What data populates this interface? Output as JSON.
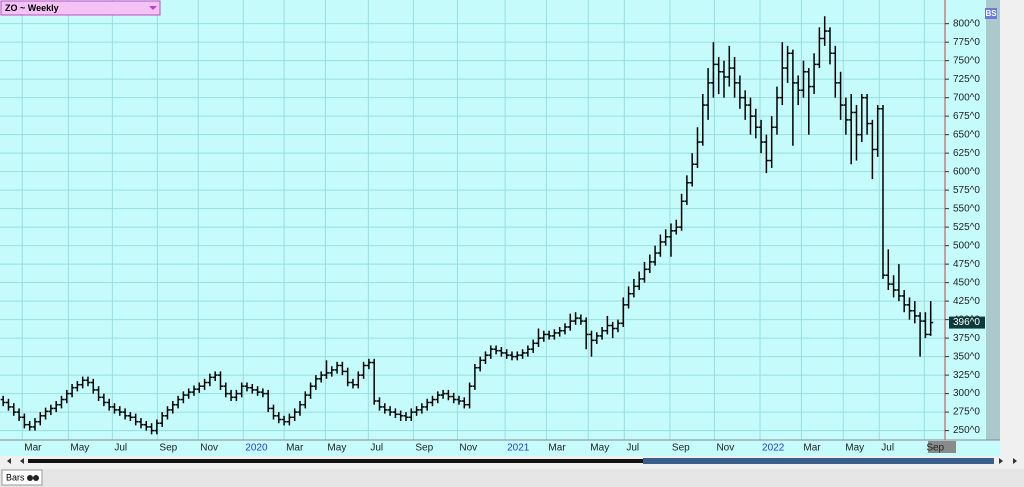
{
  "header": {
    "title": "ZO ~ Weekly",
    "badge": "BS"
  },
  "footer": {
    "tab": "Bars"
  },
  "chart_data": {
    "type": "ohlc",
    "xlim": [
      -0.6,
      177.7
    ],
    "ylim": [
      240,
      832
    ],
    "xticks": [
      {
        "value": 3.6,
        "label": "Mar"
      },
      {
        "value": 12.3,
        "label": "May"
      },
      {
        "value": 20.6,
        "label": "Jul"
      },
      {
        "value": 29.1,
        "label": "Sep"
      },
      {
        "value": 36.8,
        "label": "Nov"
      },
      {
        "value": 45.3,
        "label": "2020"
      },
      {
        "value": 53,
        "label": "Mar"
      },
      {
        "value": 60.8,
        "label": "May"
      },
      {
        "value": 68.9,
        "label": "Jul"
      },
      {
        "value": 77.4,
        "label": "Sep"
      },
      {
        "value": 85.7,
        "label": "Nov"
      },
      {
        "value": 94.7,
        "label": "2021"
      },
      {
        "value": 102.5,
        "label": "Mar"
      },
      {
        "value": 110.4,
        "label": "May"
      },
      {
        "value": 117.2,
        "label": "Jul"
      },
      {
        "value": 125.8,
        "label": "Sep"
      },
      {
        "value": 134.2,
        "label": "Nov"
      },
      {
        "value": 142.8,
        "label": "2022"
      },
      {
        "value": 150.6,
        "label": "Mar"
      },
      {
        "value": 158.5,
        "label": "May"
      },
      {
        "value": 165.3,
        "label": "Jul"
      },
      {
        "value": 173.8,
        "label": "Sep"
      }
    ],
    "yticks": [
      {
        "value": 250,
        "label": "250^0"
      },
      {
        "value": 275,
        "label": "275^0"
      },
      {
        "value": 300,
        "label": "300^0"
      },
      {
        "value": 325,
        "label": "325^0"
      },
      {
        "value": 350,
        "label": "350^0"
      },
      {
        "value": 375,
        "label": "375^0"
      },
      {
        "value": 400,
        "label": "400^0"
      },
      {
        "value": 425,
        "label": "425^0"
      },
      {
        "value": 450,
        "label": "450^0"
      },
      {
        "value": 475,
        "label": "475^0"
      },
      {
        "value": 500,
        "label": "500^0"
      },
      {
        "value": 525,
        "label": "525^0"
      },
      {
        "value": 550,
        "label": "550^0"
      },
      {
        "value": 575,
        "label": "575^0"
      },
      {
        "value": 600,
        "label": "600^0"
      },
      {
        "value": 625,
        "label": "625^0"
      },
      {
        "value": 650,
        "label": "650^0"
      },
      {
        "value": 675,
        "label": "675^0"
      },
      {
        "value": 700,
        "label": "700^0"
      },
      {
        "value": 725,
        "label": "725^0"
      },
      {
        "value": 750,
        "label": "750^0"
      },
      {
        "value": 775,
        "label": "775^0"
      },
      {
        "value": 800,
        "label": "800^0"
      }
    ],
    "grid": true,
    "color": "#000000",
    "last_label": {
      "value": 396,
      "label": "396^0"
    },
    "bars": [
      [
        292,
        297,
        283,
        288
      ],
      [
        288,
        293,
        277,
        282
      ],
      [
        282,
        287,
        270,
        275
      ],
      [
        275,
        280,
        263,
        268
      ],
      [
        268,
        273,
        253,
        258
      ],
      [
        258,
        263,
        250,
        255
      ],
      [
        255,
        267,
        250,
        262
      ],
      [
        262,
        275,
        257,
        270
      ],
      [
        270,
        281,
        265,
        276
      ],
      [
        276,
        285,
        271,
        280
      ],
      [
        280,
        290,
        275,
        285
      ],
      [
        285,
        297,
        280,
        292
      ],
      [
        292,
        305,
        287,
        300
      ],
      [
        300,
        313,
        295,
        308
      ],
      [
        308,
        317,
        303,
        312
      ],
      [
        312,
        323,
        307,
        318
      ],
      [
        318,
        323,
        310,
        315
      ],
      [
        315,
        320,
        300,
        305
      ],
      [
        305,
        310,
        290,
        295
      ],
      [
        295,
        300,
        283,
        288
      ],
      [
        288,
        293,
        277,
        282
      ],
      [
        282,
        287,
        273,
        278
      ],
      [
        278,
        283,
        270,
        275
      ],
      [
        275,
        280,
        265,
        270
      ],
      [
        270,
        275,
        263,
        268
      ],
      [
        268,
        273,
        257,
        262
      ],
      [
        262,
        267,
        253,
        258
      ],
      [
        258,
        263,
        250,
        255
      ],
      [
        255,
        260,
        245,
        250
      ],
      [
        250,
        265,
        245,
        260
      ],
      [
        260,
        275,
        255,
        270
      ],
      [
        270,
        283,
        265,
        278
      ],
      [
        278,
        290,
        273,
        285
      ],
      [
        285,
        297,
        280,
        292
      ],
      [
        292,
        303,
        287,
        298
      ],
      [
        298,
        307,
        293,
        302
      ],
      [
        302,
        311,
        297,
        306
      ],
      [
        306,
        315,
        301,
        310
      ],
      [
        310,
        320,
        305,
        315
      ],
      [
        315,
        327,
        310,
        322
      ],
      [
        322,
        330,
        317,
        325
      ],
      [
        325,
        330,
        305,
        310
      ],
      [
        310,
        315,
        295,
        300
      ],
      [
        300,
        305,
        290,
        295
      ],
      [
        295,
        305,
        290,
        300
      ],
      [
        300,
        315,
        295,
        310
      ],
      [
        310,
        315,
        303,
        308
      ],
      [
        308,
        313,
        300,
        305
      ],
      [
        305,
        310,
        297,
        302
      ],
      [
        302,
        307,
        295,
        300
      ],
      [
        300,
        305,
        275,
        280
      ],
      [
        280,
        285,
        265,
        270
      ],
      [
        270,
        275,
        260,
        265
      ],
      [
        265,
        270,
        257,
        262
      ],
      [
        262,
        273,
        257,
        268
      ],
      [
        268,
        280,
        263,
        275
      ],
      [
        275,
        290,
        270,
        285
      ],
      [
        285,
        303,
        280,
        298
      ],
      [
        298,
        315,
        293,
        310
      ],
      [
        310,
        325,
        305,
        320
      ],
      [
        320,
        330,
        315,
        325
      ],
      [
        325,
        345,
        320,
        328
      ],
      [
        328,
        337,
        323,
        332
      ],
      [
        332,
        343,
        327,
        338
      ],
      [
        338,
        343,
        325,
        330
      ],
      [
        330,
        335,
        310,
        315
      ],
      [
        315,
        320,
        307,
        312
      ],
      [
        312,
        330,
        307,
        325
      ],
      [
        325,
        343,
        320,
        338
      ],
      [
        338,
        347,
        333,
        342
      ],
      [
        342,
        347,
        285,
        290
      ],
      [
        290,
        295,
        277,
        282
      ],
      [
        282,
        287,
        273,
        278
      ],
      [
        278,
        283,
        270,
        275
      ],
      [
        275,
        280,
        267,
        272
      ],
      [
        272,
        277,
        263,
        270
      ],
      [
        270,
        275,
        263,
        268
      ],
      [
        268,
        280,
        263,
        275
      ],
      [
        275,
        283,
        270,
        278
      ],
      [
        278,
        287,
        273,
        282
      ],
      [
        282,
        293,
        277,
        288
      ],
      [
        288,
        297,
        283,
        292
      ],
      [
        292,
        303,
        287,
        298
      ],
      [
        298,
        305,
        293,
        300
      ],
      [
        300,
        305,
        291,
        296
      ],
      [
        296,
        301,
        287,
        292
      ],
      [
        292,
        297,
        285,
        290
      ],
      [
        290,
        295,
        280,
        285
      ],
      [
        285,
        315,
        280,
        310
      ],
      [
        310,
        340,
        305,
        335
      ],
      [
        335,
        350,
        330,
        345
      ],
      [
        345,
        357,
        340,
        352
      ],
      [
        352,
        365,
        347,
        360
      ],
      [
        360,
        365,
        353,
        358
      ],
      [
        358,
        363,
        350,
        355
      ],
      [
        355,
        360,
        347,
        352
      ],
      [
        352,
        357,
        345,
        350
      ],
      [
        350,
        357,
        345,
        352
      ],
      [
        352,
        360,
        347,
        355
      ],
      [
        355,
        365,
        350,
        360
      ],
      [
        360,
        373,
        355,
        368
      ],
      [
        368,
        388,
        363,
        375
      ],
      [
        375,
        385,
        370,
        380
      ],
      [
        380,
        385,
        373,
        378
      ],
      [
        378,
        387,
        373,
        382
      ],
      [
        382,
        390,
        377,
        385
      ],
      [
        385,
        395,
        380,
        390
      ],
      [
        390,
        408,
        385,
        398
      ],
      [
        398,
        410,
        393,
        402
      ],
      [
        402,
        407,
        393,
        398
      ],
      [
        398,
        403,
        360,
        380
      ],
      [
        380,
        385,
        350,
        372
      ],
      [
        372,
        383,
        367,
        378
      ],
      [
        378,
        390,
        373,
        385
      ],
      [
        385,
        405,
        380,
        392
      ],
      [
        392,
        397,
        375,
        388
      ],
      [
        388,
        400,
        383,
        395
      ],
      [
        395,
        430,
        390,
        420
      ],
      [
        420,
        445,
        415,
        435
      ],
      [
        435,
        455,
        430,
        445
      ],
      [
        445,
        465,
        440,
        455
      ],
      [
        455,
        478,
        450,
        468
      ],
      [
        468,
        488,
        463,
        478
      ],
      [
        478,
        500,
        473,
        490
      ],
      [
        490,
        515,
        485,
        505
      ],
      [
        505,
        522,
        500,
        512
      ],
      [
        512,
        530,
        485,
        520
      ],
      [
        520,
        535,
        515,
        525
      ],
      [
        525,
        570,
        520,
        560
      ],
      [
        560,
        595,
        555,
        585
      ],
      [
        585,
        625,
        580,
        610
      ],
      [
        610,
        660,
        605,
        640
      ],
      [
        640,
        705,
        635,
        690
      ],
      [
        690,
        740,
        670,
        720
      ],
      [
        720,
        775,
        700,
        745
      ],
      [
        745,
        755,
        705,
        735
      ],
      [
        735,
        750,
        700,
        728
      ],
      [
        728,
        770,
        715,
        740
      ],
      [
        740,
        755,
        700,
        720
      ],
      [
        720,
        730,
        685,
        700
      ],
      [
        700,
        710,
        670,
        690
      ],
      [
        690,
        700,
        650,
        675
      ],
      [
        675,
        685,
        645,
        660
      ],
      [
        660,
        670,
        625,
        640
      ],
      [
        640,
        650,
        598,
        615
      ],
      [
        615,
        675,
        605,
        660
      ],
      [
        660,
        715,
        650,
        700
      ],
      [
        700,
        775,
        690,
        740
      ],
      [
        740,
        770,
        720,
        760
      ],
      [
        760,
        765,
        635,
        720
      ],
      [
        720,
        730,
        690,
        710
      ],
      [
        710,
        750,
        700,
        735
      ],
      [
        735,
        740,
        650,
        715
      ],
      [
        715,
        760,
        705,
        745
      ],
      [
        745,
        795,
        740,
        780
      ],
      [
        780,
        810,
        770,
        790
      ],
      [
        790,
        795,
        745,
        760
      ],
      [
        760,
        770,
        700,
        720
      ],
      [
        720,
        735,
        670,
        690
      ],
      [
        690,
        700,
        650,
        670
      ],
      [
        670,
        705,
        610,
        680
      ],
      [
        680,
        690,
        615,
        650
      ],
      [
        650,
        705,
        640,
        700
      ],
      [
        700,
        705,
        650,
        665
      ],
      [
        665,
        670,
        590,
        630
      ],
      [
        630,
        690,
        620,
        685
      ],
      [
        685,
        690,
        455,
        460
      ],
      [
        460,
        495,
        440,
        448
      ],
      [
        448,
        460,
        430,
        440
      ],
      [
        440,
        475,
        425,
        432
      ],
      [
        432,
        440,
        410,
        420
      ],
      [
        420,
        430,
        400,
        412
      ],
      [
        412,
        425,
        395,
        405
      ],
      [
        405,
        410,
        350,
        398
      ],
      [
        398,
        410,
        375,
        380
      ],
      [
        380,
        425,
        378,
        396
      ]
    ]
  }
}
